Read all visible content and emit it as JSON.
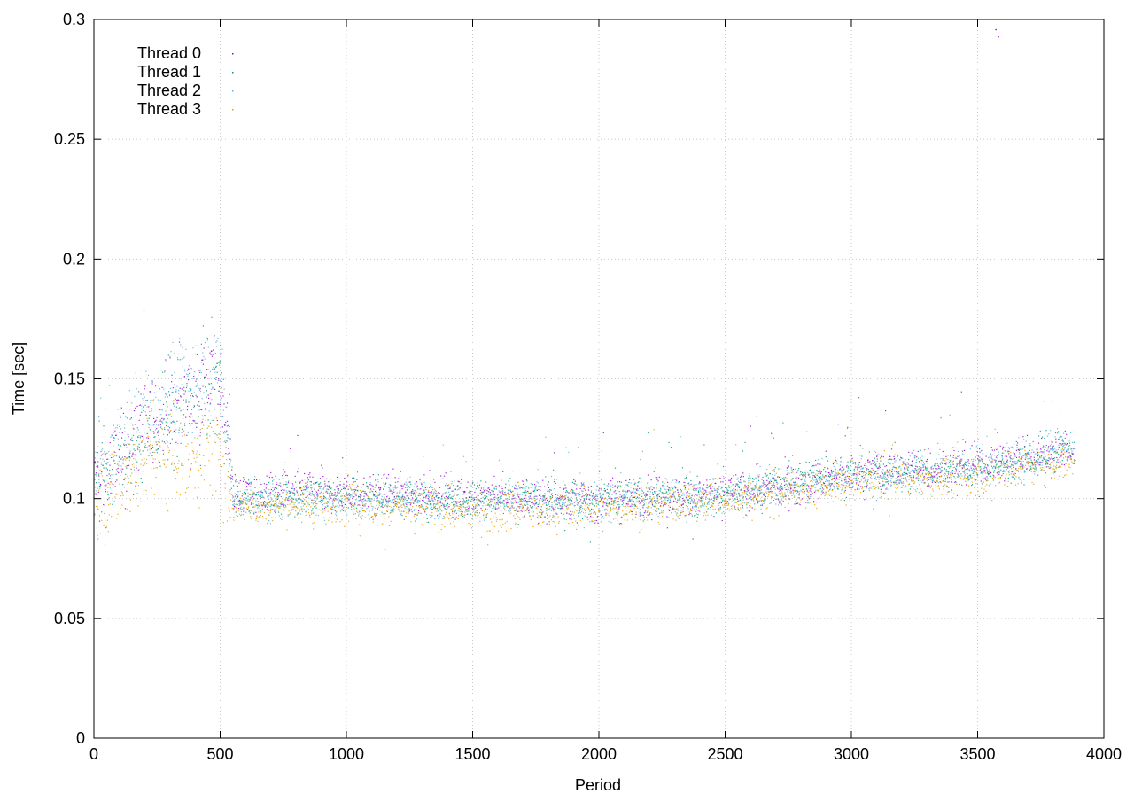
{
  "chart_data": {
    "type": "scatter",
    "title": "",
    "xlabel": "Period",
    "ylabel": "Time [sec]",
    "xlim": [
      0,
      4000
    ],
    "ylim": [
      0,
      0.3
    ],
    "xticks": [
      0,
      500,
      1000,
      1500,
      2000,
      2500,
      3000,
      3500,
      4000
    ],
    "xtick_labels": [
      "0",
      "500",
      "1000",
      "1500",
      "2000",
      "2500",
      "3000",
      "3500",
      "4000"
    ],
    "yticks": [
      0,
      0.05,
      0.1,
      0.15,
      0.2,
      0.25,
      0.3
    ],
    "ytick_labels": [
      "0",
      "0.05",
      "0.1",
      "0.15",
      "0.2",
      "0.25",
      "0.3"
    ],
    "grid": true,
    "legend_position": "top-left",
    "series": [
      {
        "name": "Thread 0",
        "color": "#9400d3",
        "x": [
          0,
          250,
          500,
          550,
          1000,
          1500,
          2000,
          2500,
          3000,
          3500,
          3880
        ],
        "values": [
          0.105,
          0.135,
          0.15,
          0.102,
          0.103,
          0.101,
          0.1,
          0.102,
          0.11,
          0.114,
          0.121
        ]
      },
      {
        "name": "Thread 1",
        "color": "#009e73",
        "x": [
          0,
          250,
          500,
          550,
          1000,
          1500,
          2000,
          2500,
          3000,
          3500,
          3880
        ],
        "values": [
          0.108,
          0.13,
          0.148,
          0.1,
          0.102,
          0.1,
          0.1,
          0.102,
          0.111,
          0.112,
          0.12
        ]
      },
      {
        "name": "Thread 2",
        "color": "#56b4e9",
        "x": [
          0,
          250,
          500,
          550,
          1000,
          1500,
          2000,
          2500,
          3000,
          3500,
          3880
        ],
        "values": [
          0.11,
          0.14,
          0.155,
          0.1,
          0.1,
          0.099,
          0.099,
          0.101,
          0.11,
          0.113,
          0.122
        ]
      },
      {
        "name": "Thread 3",
        "color": "#e69f00",
        "x": [
          0,
          250,
          500,
          550,
          1000,
          1500,
          2000,
          2500,
          3000,
          3500,
          3880
        ],
        "values": [
          0.1,
          0.12,
          0.12,
          0.098,
          0.098,
          0.095,
          0.096,
          0.1,
          0.107,
          0.11,
          0.117
        ]
      }
    ],
    "outliers": {
      "x": [
        3570,
        3580
      ],
      "values": [
        0.296,
        0.293
      ]
    }
  }
}
